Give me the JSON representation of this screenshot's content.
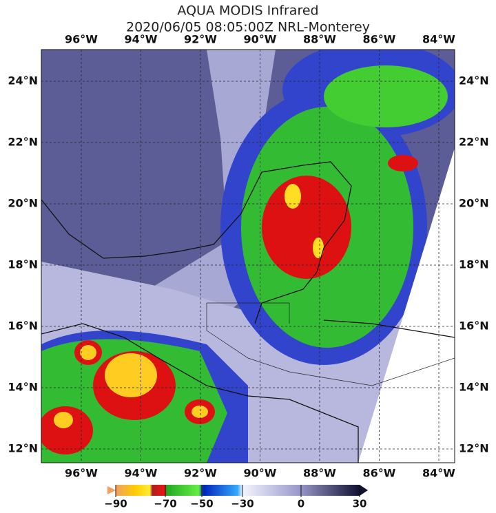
{
  "header": {
    "title": "AQUA MODIS Infrared",
    "subtitle": "2020/06/05 08:05:00Z NRL-Monterey"
  },
  "map": {
    "lon_labels": [
      "96°W",
      "94°W",
      "92°W",
      "90°W",
      "88°W",
      "86°W",
      "84°W"
    ],
    "lat_labels": [
      "24°N",
      "22°N",
      "20°N",
      "18°N",
      "16°N",
      "14°N",
      "12°N"
    ]
  },
  "colorbar": {
    "ticks": [
      "−90",
      "−70",
      "−50",
      "−30",
      "0",
      "30"
    ]
  }
}
